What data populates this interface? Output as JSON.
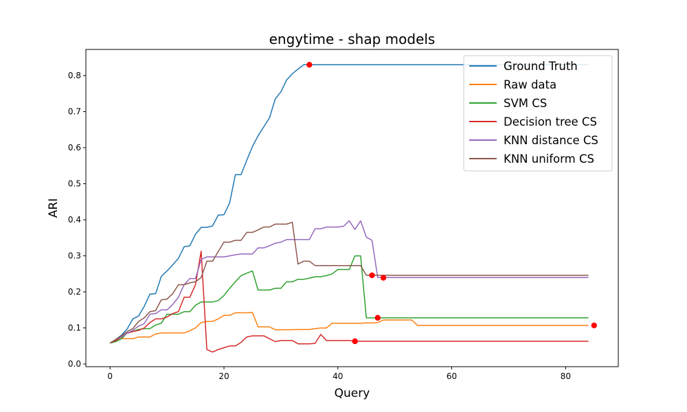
{
  "chart_data": {
    "type": "line",
    "title": "engytime - shap models",
    "xlabel": "Query",
    "ylabel": "ARI",
    "xlim": [
      -4.25,
      89.25
    ],
    "ylim": [
      -0.0075,
      0.8725
    ],
    "xticks": [
      0,
      20,
      40,
      60,
      80
    ],
    "yticks": [
      0.0,
      0.1,
      0.2,
      0.3,
      0.4,
      0.5,
      0.6,
      0.7,
      0.8
    ],
    "ytick_labels": [
      "0.0",
      "0.1",
      "0.2",
      "0.3",
      "0.4",
      "0.5",
      "0.6",
      "0.7",
      "0.8"
    ],
    "grid": false,
    "legend_position": "top-right",
    "marker_color": "#ff0000",
    "series": [
      {
        "name": "Ground Truth",
        "color": "#1f77b4",
        "x": [
          0,
          1,
          2,
          3,
          4,
          5,
          6,
          7,
          8,
          9,
          10,
          11,
          12,
          13,
          14,
          15,
          16,
          17,
          18,
          19,
          20,
          21,
          22,
          23,
          24,
          25,
          26,
          27,
          28,
          29,
          30,
          31,
          32,
          33,
          34,
          35,
          40,
          50,
          60,
          70,
          84
        ],
        "y": [
          0.058,
          0.068,
          0.08,
          0.097,
          0.125,
          0.133,
          0.16,
          0.194,
          0.195,
          0.243,
          0.258,
          0.275,
          0.293,
          0.325,
          0.328,
          0.36,
          0.379,
          0.379,
          0.383,
          0.413,
          0.414,
          0.447,
          0.525,
          0.525,
          0.565,
          0.603,
          0.633,
          0.658,
          0.683,
          0.735,
          0.755,
          0.788,
          0.805,
          0.818,
          0.83,
          0.83,
          0.83,
          0.83,
          0.83,
          0.83,
          0.83
        ],
        "marker": {
          "x": 35,
          "y": 0.83
        }
      },
      {
        "name": "Raw data",
        "color": "#ff7f0e",
        "x": [
          0,
          1,
          2,
          3,
          4,
          5,
          6,
          7,
          8,
          9,
          10,
          11,
          12,
          13,
          14,
          15,
          16,
          17,
          18,
          19,
          20,
          21,
          22,
          23,
          24,
          25,
          26,
          27,
          28,
          29,
          30,
          31,
          32,
          33,
          34,
          35,
          36,
          37,
          38,
          39,
          40,
          41,
          42,
          43,
          44,
          45,
          46,
          47,
          48,
          49,
          50,
          51,
          52,
          53,
          54,
          55,
          60,
          70,
          84
        ],
        "y": [
          0.058,
          0.065,
          0.07,
          0.07,
          0.07,
          0.075,
          0.075,
          0.075,
          0.083,
          0.086,
          0.086,
          0.086,
          0.086,
          0.086,
          0.092,
          0.1,
          0.115,
          0.118,
          0.118,
          0.125,
          0.135,
          0.135,
          0.142,
          0.142,
          0.142,
          0.143,
          0.103,
          0.103,
          0.103,
          0.095,
          0.095,
          0.095,
          0.095,
          0.096,
          0.096,
          0.096,
          0.098,
          0.1,
          0.1,
          0.113,
          0.113,
          0.113,
          0.113,
          0.113,
          0.113,
          0.114,
          0.114,
          0.115,
          0.122,
          0.122,
          0.122,
          0.122,
          0.122,
          0.122,
          0.107,
          0.107,
          0.107,
          0.107,
          0.107
        ],
        "marker": {
          "x": 85,
          "y": 0.107
        }
      },
      {
        "name": "SVM CS",
        "color": "#2ca02c",
        "x": [
          0,
          1,
          2,
          3,
          4,
          5,
          6,
          7,
          8,
          9,
          10,
          11,
          12,
          13,
          14,
          15,
          16,
          17,
          18,
          19,
          20,
          21,
          22,
          23,
          24,
          25,
          26,
          27,
          28,
          29,
          30,
          31,
          32,
          33,
          34,
          35,
          36,
          37,
          38,
          39,
          40,
          41,
          42,
          43,
          44,
          45,
          46,
          47,
          50,
          60,
          70,
          84
        ],
        "y": [
          0.058,
          0.062,
          0.07,
          0.086,
          0.09,
          0.096,
          0.098,
          0.098,
          0.108,
          0.113,
          0.138,
          0.138,
          0.138,
          0.145,
          0.145,
          0.163,
          0.172,
          0.172,
          0.172,
          0.176,
          0.19,
          0.21,
          0.228,
          0.245,
          0.252,
          0.258,
          0.205,
          0.205,
          0.205,
          0.21,
          0.21,
          0.228,
          0.228,
          0.235,
          0.235,
          0.238,
          0.242,
          0.242,
          0.245,
          0.25,
          0.262,
          0.262,
          0.262,
          0.3,
          0.3,
          0.128,
          0.128,
          0.128,
          0.128,
          0.128,
          0.128,
          0.128
        ],
        "marker": {
          "x": 47,
          "y": 0.128
        }
      },
      {
        "name": "Decision tree CS",
        "color": "#d62728",
        "x": [
          0,
          1,
          2,
          3,
          4,
          5,
          6,
          7,
          8,
          9,
          10,
          11,
          12,
          13,
          14,
          15,
          16,
          17,
          18,
          19,
          20,
          21,
          22,
          23,
          24,
          25,
          26,
          27,
          28,
          29,
          30,
          31,
          32,
          33,
          34,
          35,
          36,
          37,
          38,
          39,
          40,
          41,
          42,
          43,
          50,
          60,
          70,
          84
        ],
        "y": [
          0.058,
          0.065,
          0.075,
          0.085,
          0.09,
          0.093,
          0.1,
          0.115,
          0.125,
          0.125,
          0.13,
          0.14,
          0.145,
          0.185,
          0.185,
          0.22,
          0.313,
          0.04,
          0.033,
          0.04,
          0.045,
          0.05,
          0.05,
          0.06,
          0.075,
          0.078,
          0.078,
          0.078,
          0.07,
          0.062,
          0.065,
          0.065,
          0.065,
          0.056,
          0.056,
          0.056,
          0.057,
          0.082,
          0.065,
          0.065,
          0.065,
          0.065,
          0.065,
          0.063,
          0.063,
          0.063,
          0.063,
          0.063
        ],
        "marker": {
          "x": 43,
          "y": 0.063
        }
      },
      {
        "name": "KNN distance CS",
        "color": "#9467bd",
        "x": [
          0,
          1,
          2,
          3,
          4,
          5,
          6,
          7,
          8,
          9,
          10,
          11,
          12,
          13,
          14,
          15,
          16,
          17,
          18,
          19,
          20,
          21,
          22,
          23,
          24,
          25,
          26,
          27,
          28,
          29,
          30,
          31,
          32,
          33,
          34,
          35,
          36,
          37,
          38,
          39,
          40,
          41,
          42,
          43,
          44,
          45,
          46,
          47,
          48,
          50,
          60,
          70,
          84
        ],
        "y": [
          0.058,
          0.068,
          0.075,
          0.085,
          0.093,
          0.105,
          0.112,
          0.138,
          0.14,
          0.15,
          0.15,
          0.165,
          0.185,
          0.22,
          0.237,
          0.237,
          0.29,
          0.297,
          0.297,
          0.297,
          0.297,
          0.3,
          0.303,
          0.305,
          0.305,
          0.305,
          0.322,
          0.322,
          0.328,
          0.335,
          0.338,
          0.345,
          0.345,
          0.345,
          0.345,
          0.345,
          0.375,
          0.375,
          0.38,
          0.38,
          0.38,
          0.382,
          0.397,
          0.373,
          0.397,
          0.352,
          0.343,
          0.24,
          0.24,
          0.24,
          0.24,
          0.24,
          0.24
        ],
        "marker": {
          "x": 48,
          "y": 0.239
        }
      },
      {
        "name": "KNN uniform CS",
        "color": "#8c564b",
        "x": [
          0,
          1,
          2,
          3,
          4,
          5,
          6,
          7,
          8,
          9,
          10,
          11,
          12,
          13,
          14,
          15,
          16,
          17,
          18,
          19,
          20,
          21,
          22,
          23,
          24,
          25,
          26,
          27,
          28,
          29,
          30,
          31,
          32,
          33,
          34,
          35,
          36,
          37,
          38,
          39,
          40,
          41,
          42,
          43,
          44,
          45,
          46,
          47,
          50,
          60,
          70,
          84
        ],
        "y": [
          0.058,
          0.068,
          0.078,
          0.09,
          0.098,
          0.118,
          0.128,
          0.145,
          0.148,
          0.178,
          0.18,
          0.195,
          0.22,
          0.22,
          0.225,
          0.228,
          0.24,
          0.285,
          0.285,
          0.312,
          0.338,
          0.338,
          0.343,
          0.343,
          0.365,
          0.365,
          0.372,
          0.38,
          0.38,
          0.388,
          0.388,
          0.388,
          0.393,
          0.277,
          0.285,
          0.285,
          0.273,
          0.273,
          0.273,
          0.273,
          0.273,
          0.273,
          0.273,
          0.273,
          0.273,
          0.246,
          0.246,
          0.246,
          0.246,
          0.246,
          0.246,
          0.246
        ],
        "marker": {
          "x": 46,
          "y": 0.246
        }
      }
    ]
  }
}
